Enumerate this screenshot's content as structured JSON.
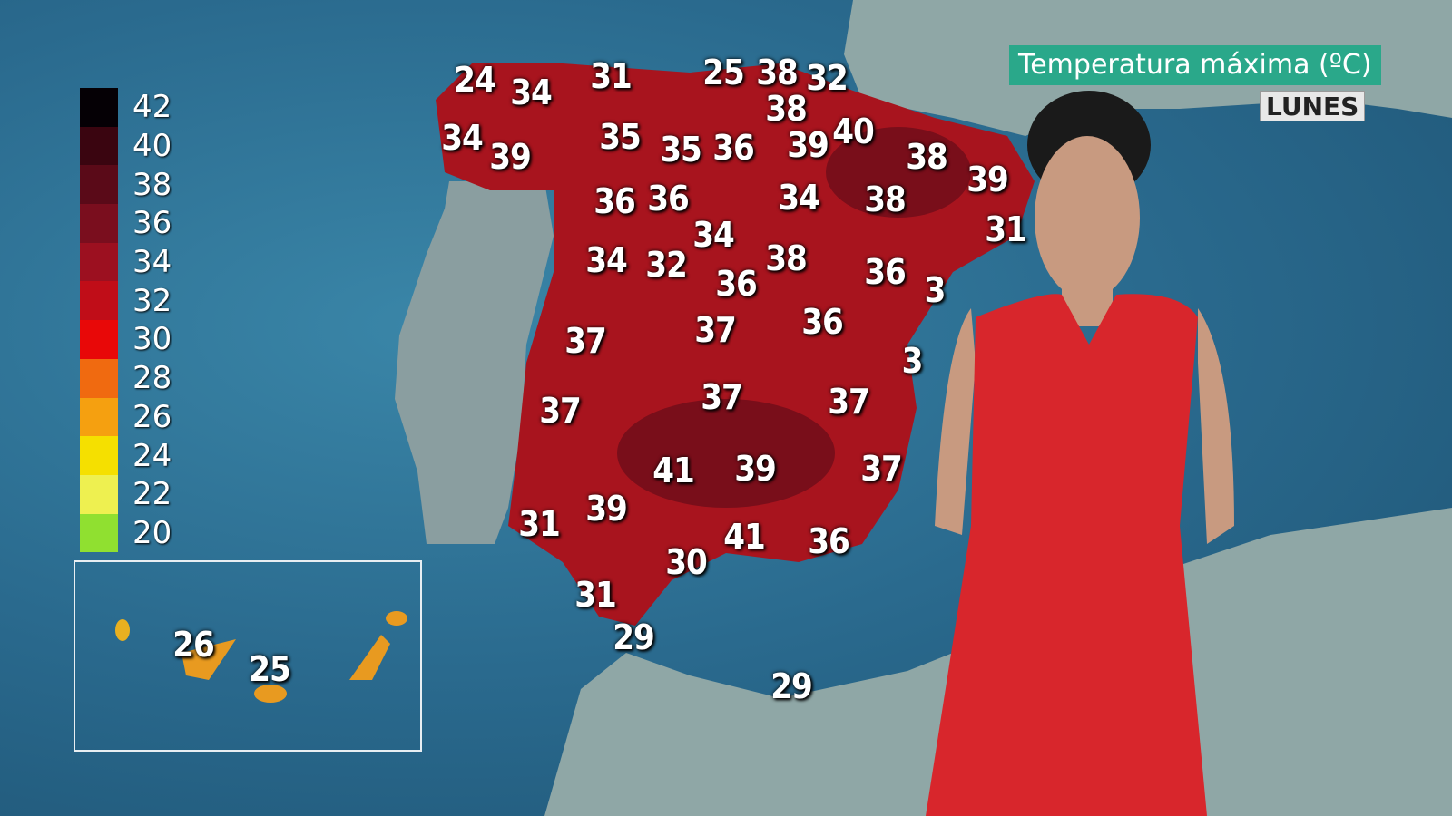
{
  "title": "Temperatura máxima (ºC)",
  "day": "LUNES",
  "legend": {
    "labels": [
      "42",
      "40",
      "38",
      "36",
      "34",
      "32",
      "30",
      "28",
      "26",
      "24",
      "22",
      "20"
    ],
    "colors": [
      "#050005",
      "#3a0510",
      "#5a0a18",
      "#7a0e1e",
      "#9c1020",
      "#c00d18",
      "#e80808",
      "#f06a10",
      "#f5a010",
      "#f5e000",
      "#eef050",
      "#90e030"
    ]
  },
  "temperatures": [
    "24",
    "34",
    "31",
    "25",
    "38",
    "32",
    "34",
    "39",
    "35",
    "35",
    "36",
    "38",
    "39",
    "40",
    "38",
    "39",
    "31",
    "36",
    "36",
    "34",
    "38",
    "34",
    "34",
    "32",
    "38",
    "36",
    "36",
    "3",
    "37",
    "37",
    "36",
    "3",
    "37",
    "37",
    "37",
    "41",
    "39",
    "37",
    "31",
    "39",
    "41",
    "36",
    "30",
    "31",
    "29",
    "29"
  ],
  "canarias": [
    "26",
    "25"
  ],
  "colors": {
    "title_bg": "#2aa88a",
    "dress": "#d8262c"
  }
}
